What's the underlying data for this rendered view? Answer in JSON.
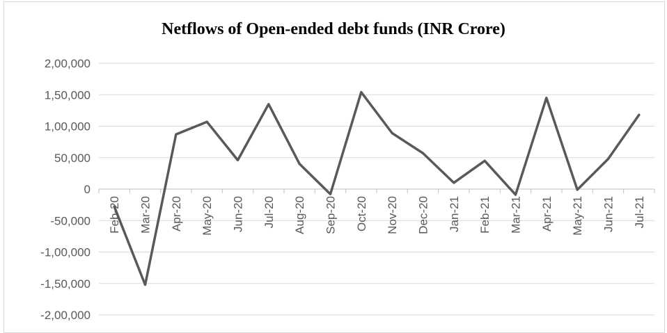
{
  "chart_data": {
    "type": "line",
    "title": "Netflows of Open-ended debt funds (INR Crore)",
    "xlabel": "",
    "ylabel": "",
    "categories": [
      "Feb-20",
      "Mar-20",
      "Apr-20",
      "May-20",
      "Jun-20",
      "Jul-20",
      "Aug-20",
      "Sep-20",
      "Oct-20",
      "Nov-20",
      "Dec-20",
      "Jan-21",
      "Feb-21",
      "Mar-21",
      "Apr-21",
      "May-21",
      "Jun-21",
      "Jul-21"
    ],
    "series": [
      {
        "values": [
          -28000,
          -152000,
          87000,
          107000,
          46000,
          135000,
          40000,
          -8000,
          154000,
          89000,
          57000,
          10000,
          45000,
          -9000,
          145000,
          -1000,
          48000,
          118000
        ]
      }
    ],
    "ylim": [
      -200000,
      200000
    ],
    "yticks": [
      200000,
      150000,
      100000,
      50000,
      0,
      -50000,
      -100000,
      -150000,
      -200000
    ],
    "ytick_labels": [
      "2,00,000",
      "1,50,000",
      "1,00,000",
      "50,000",
      "0",
      "-50,000",
      "-1,00,000",
      "-1,50,000",
      "-2,00,000"
    ],
    "grid": true,
    "legend": "none",
    "colors": {
      "line": "#595959",
      "grid": "#d9d9d9",
      "axis": "#bfbfbf",
      "text": "#595959"
    }
  }
}
